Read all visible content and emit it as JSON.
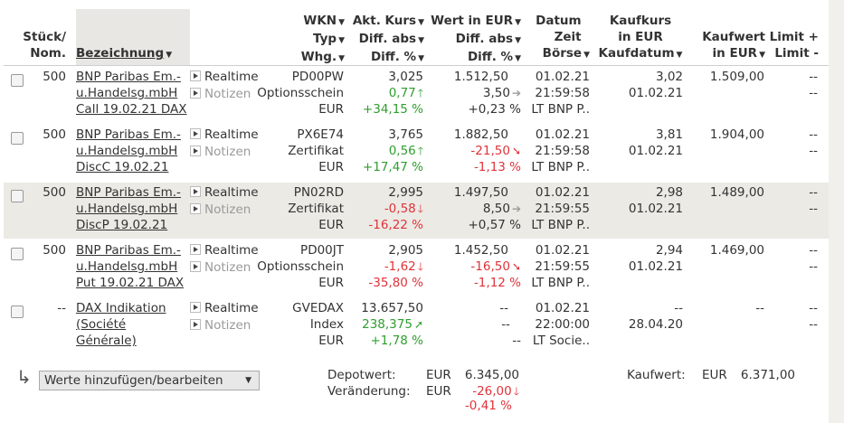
{
  "header": {
    "stueck": [
      "Stück/",
      "Nom."
    ],
    "bezeichnung": "Bezeichnung",
    "wkn": [
      "WKN",
      "Typ",
      "Whg."
    ],
    "akt": [
      "Akt. Kurs",
      "Diff. abs",
      "Diff. %"
    ],
    "wert": [
      "Wert in EUR",
      "Diff. abs",
      "Diff. %"
    ],
    "datum": [
      "Datum",
      "Zeit",
      "Börse"
    ],
    "kaufkurs": [
      "Kaufkurs",
      "in EUR",
      "Kaufdatum"
    ],
    "kaufwert": [
      "Kaufwert",
      "in EUR"
    ],
    "limit": [
      "Limit +",
      "Limit -"
    ]
  },
  "rows": [
    {
      "qty": "500",
      "name": [
        "BNP Paribas Em.-",
        "u.Handelsg.mbH",
        "Call 19.02.21 DAX"
      ],
      "realtime": "Realtime",
      "notizen": "Notizen",
      "wkn": "PD00PW",
      "typ": "Optionsschein",
      "whg": "EUR",
      "kurs": "3,025",
      "diff_abs": "0,77",
      "diff_pct": "+34,15 %",
      "diff_dir": "up",
      "wert": "1.512,50",
      "wert_abs": "3,50",
      "wert_pct": "+0,23 %",
      "wert_dir": "flat",
      "datum": "01.02.21",
      "zeit": "21:59:58",
      "boerse": "LT BNP P..",
      "kaufkurs": "3,02",
      "kaufdatum": "01.02.21",
      "kaufwert": "1.509,00",
      "limit_plus": "--",
      "limit_minus": "--"
    },
    {
      "qty": "500",
      "name": [
        "BNP Paribas Em.-",
        "u.Handelsg.mbH",
        "DiscC 19.02.21"
      ],
      "realtime": "Realtime",
      "notizen": "Notizen",
      "wkn": "PX6E74",
      "typ": "Zertifikat",
      "whg": "EUR",
      "kurs": "3,765",
      "diff_abs": "0,56",
      "diff_pct": "+17,47 %",
      "diff_dir": "up",
      "wert": "1.882,50",
      "wert_abs": "-21,50",
      "wert_pct": "-1,13 %",
      "wert_dir": "down",
      "datum": "01.02.21",
      "zeit": "21:59:58",
      "boerse": "LT BNP P..",
      "kaufkurs": "3,81",
      "kaufdatum": "01.02.21",
      "kaufwert": "1.904,00",
      "limit_plus": "--",
      "limit_minus": "--"
    },
    {
      "qty": "500",
      "name": [
        "BNP Paribas Em.-",
        "u.Handelsg.mbH",
        "DiscP 19.02.21"
      ],
      "realtime": "Realtime",
      "notizen": "Notizen",
      "wkn": "PN02RD",
      "typ": "Zertifikat",
      "whg": "EUR",
      "kurs": "2,995",
      "diff_abs": "-0,58",
      "diff_pct": "-16,22 %",
      "diff_dir": "down",
      "wert": "1.497,50",
      "wert_abs": "8,50",
      "wert_pct": "+0,57 %",
      "wert_dir": "flat",
      "datum": "01.02.21",
      "zeit": "21:59:55",
      "boerse": "LT BNP P..",
      "kaufkurs": "2,98",
      "kaufdatum": "01.02.21",
      "kaufwert": "1.489,00",
      "limit_plus": "--",
      "limit_minus": "--"
    },
    {
      "qty": "500",
      "name": [
        "BNP Paribas Em.-",
        "u.Handelsg.mbH",
        "Put 19.02.21 DAX"
      ],
      "realtime": "Realtime",
      "notizen": "Notizen",
      "wkn": "PD00JT",
      "typ": "Optionsschein",
      "whg": "EUR",
      "kurs": "2,905",
      "diff_abs": "-1,62",
      "diff_pct": "-35,80 %",
      "diff_dir": "down",
      "wert": "1.452,50",
      "wert_abs": "-16,50",
      "wert_pct": "-1,12 %",
      "wert_dir": "down",
      "datum": "01.02.21",
      "zeit": "21:59:55",
      "boerse": "LT BNP P..",
      "kaufkurs": "2,94",
      "kaufdatum": "01.02.21",
      "kaufwert": "1.469,00",
      "limit_plus": "--",
      "limit_minus": "--"
    },
    {
      "qty": "--",
      "name": [
        "DAX Indikation",
        "(Société",
        "Générale)"
      ],
      "realtime": "Realtime",
      "notizen": "Notizen",
      "wkn": "GVEDAX",
      "typ": "Index",
      "whg": "EUR",
      "kurs": "13.657,50",
      "diff_abs": "238,375",
      "diff_pct": "+1,78 %",
      "diff_dir": "up2",
      "wert": "--",
      "wert_abs": "--",
      "wert_pct": "--",
      "wert_dir": "none",
      "datum": "01.02.21",
      "zeit": "22:00:00",
      "boerse": "LT Socie..",
      "kaufkurs": "--",
      "kaufdatum": "28.04.20",
      "kaufwert": "--",
      "limit_plus": "--",
      "limit_minus": "--"
    }
  ],
  "footer": {
    "select_label": "Werte hinzufügen/bearbeiten",
    "depotwert_label": "Depotwert:",
    "depotwert_cur": "EUR",
    "depotwert_value": "6.345,00",
    "veraenderung_label": "Veränderung:",
    "veraenderung_cur": "EUR",
    "veraenderung_abs": "-26,00",
    "veraenderung_pct": "-0,41 %",
    "kaufwert_label": "Kaufwert:",
    "kaufwert_cur": "EUR",
    "kaufwert_value": "6.371,00"
  },
  "colors": {
    "positive": "#2f9e2f",
    "negative": "#e0333a",
    "row_alt": "#ebeae5"
  }
}
